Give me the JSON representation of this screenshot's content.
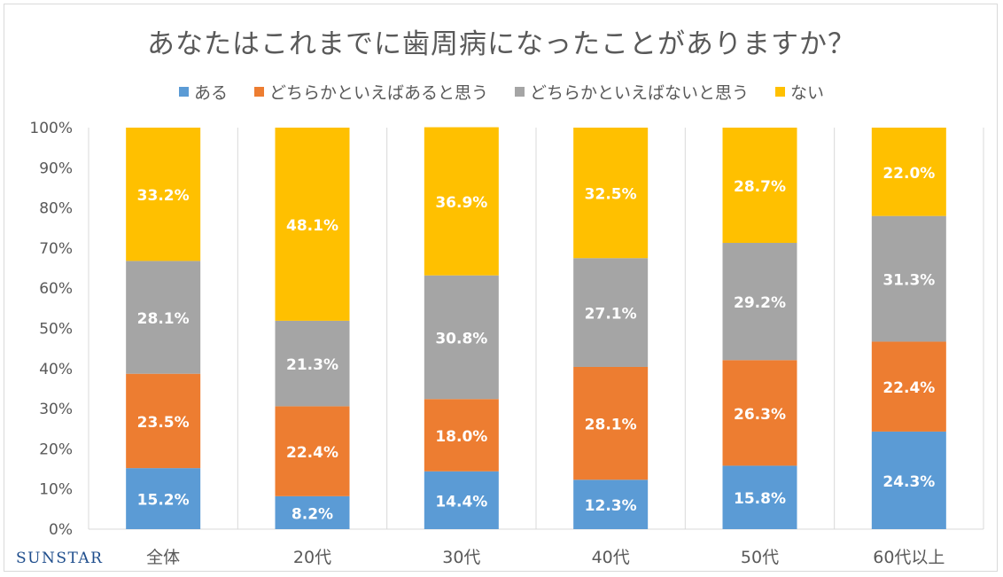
{
  "chart_data": {
    "type": "bar",
    "stacked": true,
    "title": "あなたはこれまでに歯周病になったことがありますか？",
    "categories": [
      "全体",
      "20代",
      "30代",
      "40代",
      "50代",
      "60代以上"
    ],
    "series": [
      {
        "name": "ある",
        "color": "#5b9bd5",
        "values": [
          15.2,
          8.2,
          14.4,
          12.3,
          15.8,
          24.3
        ]
      },
      {
        "name": "どちらかといえばあると思う",
        "color": "#ed7d31",
        "values": [
          23.5,
          22.4,
          18.0,
          28.1,
          26.3,
          22.4
        ]
      },
      {
        "name": "どちらかといえばないと思う",
        "color": "#a5a5a5",
        "values": [
          28.1,
          21.3,
          30.8,
          27.1,
          29.2,
          31.3
        ]
      },
      {
        "name": "ない",
        "color": "#ffc000",
        "values": [
          33.2,
          48.1,
          36.9,
          32.5,
          28.7,
          22.0
        ]
      }
    ],
    "ylim": [
      0,
      100
    ],
    "yticks": [
      "0%",
      "10%",
      "20%",
      "30%",
      "40%",
      "50%",
      "60%",
      "70%",
      "80%",
      "90%",
      "100%"
    ],
    "grid": "vertical",
    "legend": "top"
  },
  "brand": "SUNSTAR"
}
